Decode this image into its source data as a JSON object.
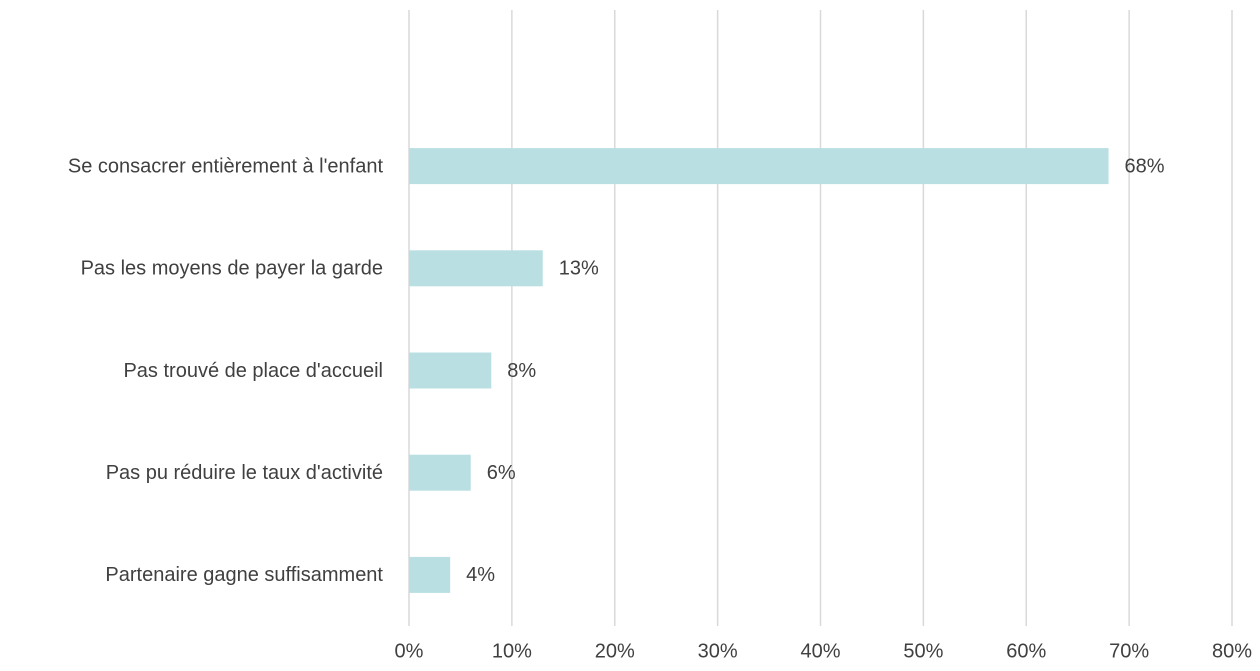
{
  "chart_data": {
    "type": "bar",
    "orientation": "horizontal",
    "categories": [
      "Se consacrer entièrement à l'enfant",
      "Pas les moyens de payer la garde",
      "Pas trouvé de place d'accueil",
      "Pas pu réduire le taux d'activité",
      "Partenaire gagne suffisamment"
    ],
    "values": [
      68,
      13,
      8,
      6,
      4
    ],
    "value_labels": [
      "68%",
      "13%",
      "8%",
      "6%",
      "4%"
    ],
    "color": "#b9dfe3",
    "xlim": [
      0,
      80
    ],
    "xticks": [
      {
        "value": 0,
        "label": "0%"
      },
      {
        "value": 10,
        "label": "10%"
      },
      {
        "value": 20,
        "label": "20%"
      },
      {
        "value": 30,
        "label": "30%"
      },
      {
        "value": 40,
        "label": "40%"
      },
      {
        "value": 50,
        "label": "50%"
      },
      {
        "value": 60,
        "label": "60%"
      },
      {
        "value": 70,
        "label": "70%"
      },
      {
        "value": 80,
        "label": "80%"
      }
    ],
    "grid": true
  }
}
